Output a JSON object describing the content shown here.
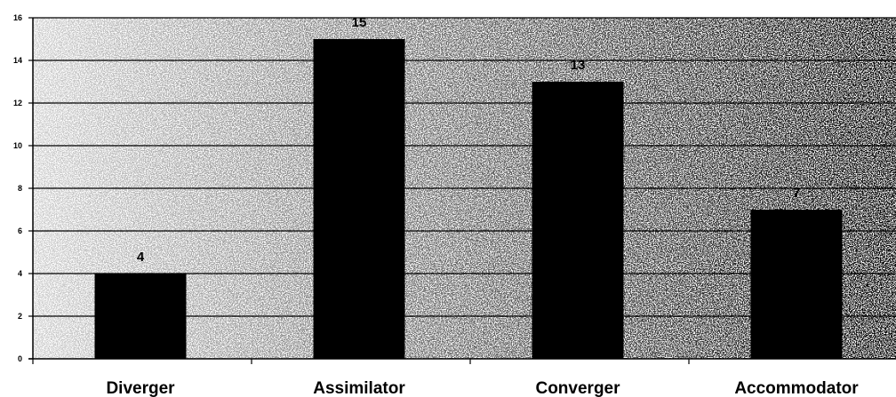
{
  "chart_data": {
    "type": "bar",
    "categories": [
      "Diverger",
      "Assimilator",
      "Converger",
      "Accommodator"
    ],
    "values": [
      4,
      15,
      13,
      7
    ],
    "data_labels": [
      "4",
      "15",
      "13",
      "7"
    ],
    "title": "",
    "xlabel": "",
    "ylabel": "",
    "ylim": [
      0,
      16
    ],
    "yticks": [
      0,
      2,
      4,
      6,
      8,
      10,
      12,
      14,
      16
    ],
    "grid": true,
    "legend": "none",
    "bar_color": "#000000",
    "background": "stippled gray",
    "gridline_color": "#000000"
  }
}
